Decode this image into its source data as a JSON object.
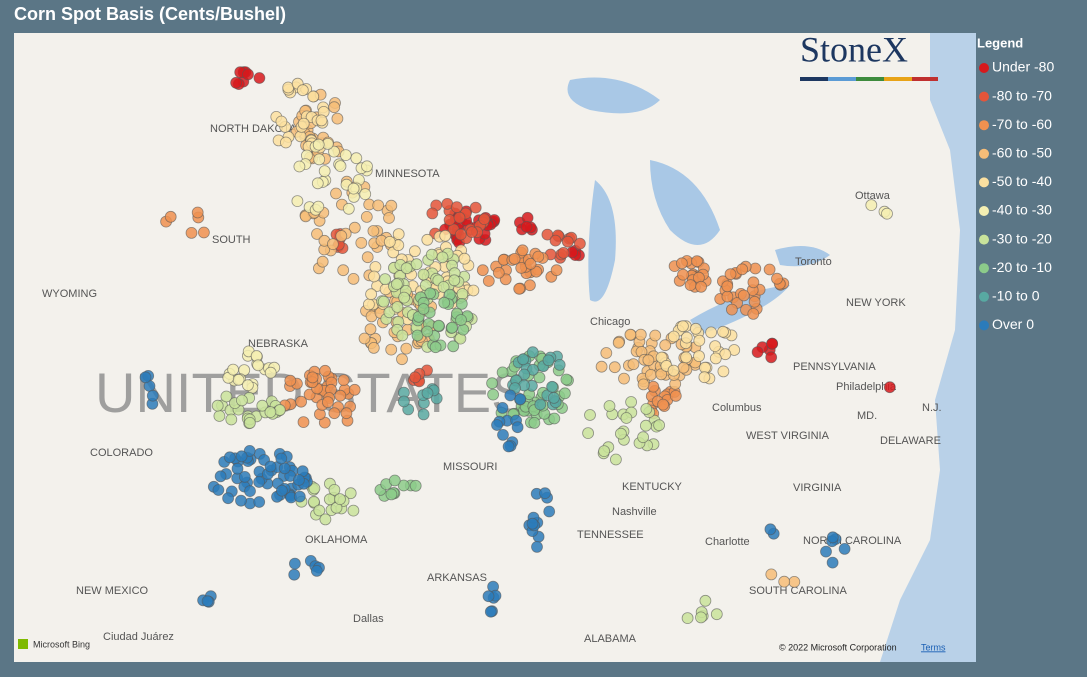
{
  "header": {
    "title": "Corn Spot Basis (Cents/Bushel)"
  },
  "legend": {
    "title": "Legend",
    "items": [
      {
        "label": "Under -80",
        "color": "#d7191c"
      },
      {
        "label": "-80 to -70",
        "color": "#e4553a"
      },
      {
        "label": "-70 to -60",
        "color": "#ef9150"
      },
      {
        "label": "-60 to -50",
        "color": "#f6bd78"
      },
      {
        "label": "-50 to -40",
        "color": "#fbe0a0"
      },
      {
        "label": "-40 to -30",
        "color": "#f4efb2"
      },
      {
        "label": "-30 to -20",
        "color": "#c9e39b"
      },
      {
        "label": "-20 to -10",
        "color": "#8ccb8a"
      },
      {
        "label": "-10 to 0",
        "color": "#58a9a2"
      },
      {
        "label": "Over 0",
        "color": "#2b7bba"
      }
    ]
  },
  "map": {
    "logo": "StoneX",
    "big_label": "UNITED STATES",
    "labels": [
      "NORTH DAKOTA",
      "MINNESOTA",
      "SOUTH",
      "WYOMING",
      "NEBRASKA",
      "COLORADO",
      "MISSOURI",
      "KENTUCKY",
      "OKLAHOMA",
      "TENNESSEE",
      "ARKANSAS",
      "NEW MEXICO",
      "Dallas",
      "ALABAMA",
      "Ciudad Juárez",
      "Ottawa",
      "NEW YORK",
      "PENNSYLVANIA",
      "Philadelphia",
      "Columbus",
      "WEST VIRGINIA",
      "DELAWARE",
      "VIRGINIA",
      "Nashville",
      "Charlotte",
      "NORTH CAROLINA",
      "SOUTH CAROLINA",
      "Chicago",
      "MD.",
      "N.J.",
      "Toronto"
    ],
    "attribution": "Microsoft Bing",
    "copyright": "© 2022 Microsoft Corporation",
    "terms": "Terms"
  }
}
